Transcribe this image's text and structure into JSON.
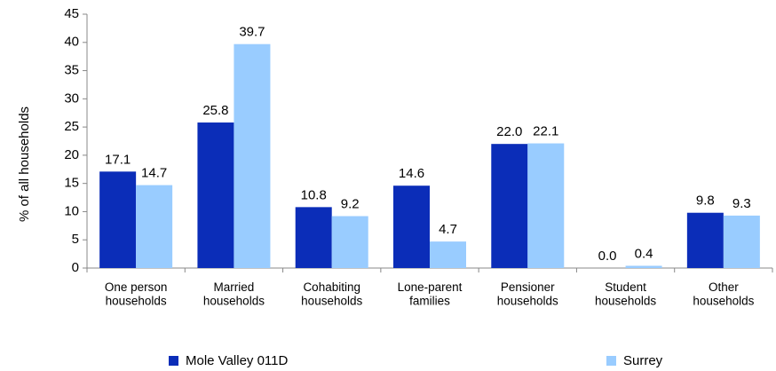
{
  "chart_data": {
    "type": "bar",
    "y_label": "% of all households",
    "categories": [
      "One person\nhouseholds",
      "Married\nhouseholds",
      "Cohabiting\nhouseholds",
      "Lone-parent\nfamilies",
      "Pensioner\nhouseholds",
      "Student\nhouseholds",
      "Other\nhouseholds"
    ],
    "series": [
      {
        "name": "Mole Valley 011D",
        "color": "#0b2db8",
        "values": [
          17.1,
          25.8,
          10.8,
          14.6,
          22.0,
          0.0,
          9.8
        ],
        "value_labels": [
          "17.1",
          "25.8",
          "10.8",
          "14.6",
          "22.0",
          "0.0",
          "9.8"
        ]
      },
      {
        "name": "Surrey",
        "color": "#99ccff",
        "values": [
          14.7,
          39.7,
          9.2,
          4.7,
          22.1,
          0.4,
          9.3
        ],
        "value_labels": [
          "14.7",
          "39.7",
          "9.2",
          "4.7",
          "22.1",
          "0.4",
          "9.3"
        ]
      }
    ],
    "ylim": [
      0,
      45
    ],
    "yticks": [
      0,
      5,
      10,
      15,
      20,
      25,
      30,
      35,
      40,
      45
    ],
    "legend": "bottom"
  }
}
